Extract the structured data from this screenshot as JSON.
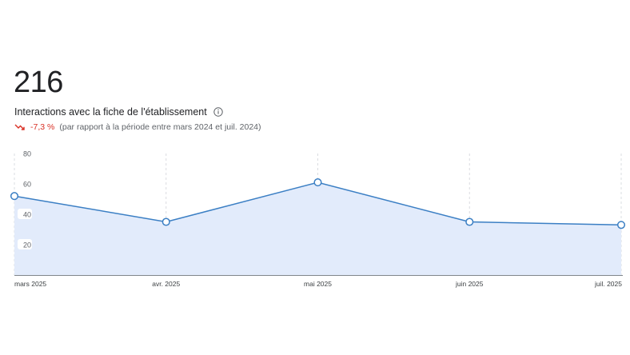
{
  "metric": {
    "value": "216",
    "label": "Interactions avec la fiche de l'établissement",
    "trend_delta": "-7,3 %",
    "trend_comparison": "(par rapport à la période entre mars 2024 et juil. 2024)",
    "trend_icon": "trending-down-icon",
    "info_icon": "info-icon"
  },
  "colors": {
    "line": "#3b7fc4",
    "area": "#e2ebfb",
    "trend_negative": "#d93025",
    "grid": "#dadce0",
    "axis": "#80868b"
  },
  "chart_data": {
    "type": "area",
    "categories": [
      "mars 2025",
      "avr. 2025",
      "mai 2025",
      "juin 2025",
      "juil. 2025"
    ],
    "series": [
      {
        "values": [
          52,
          35,
          61,
          35,
          33
        ]
      }
    ],
    "yticks": [
      "80",
      "60",
      "40",
      "20"
    ],
    "ylim": [
      0,
      80
    ],
    "grid": "vertical-dashed",
    "markers": "hollow-circle"
  }
}
